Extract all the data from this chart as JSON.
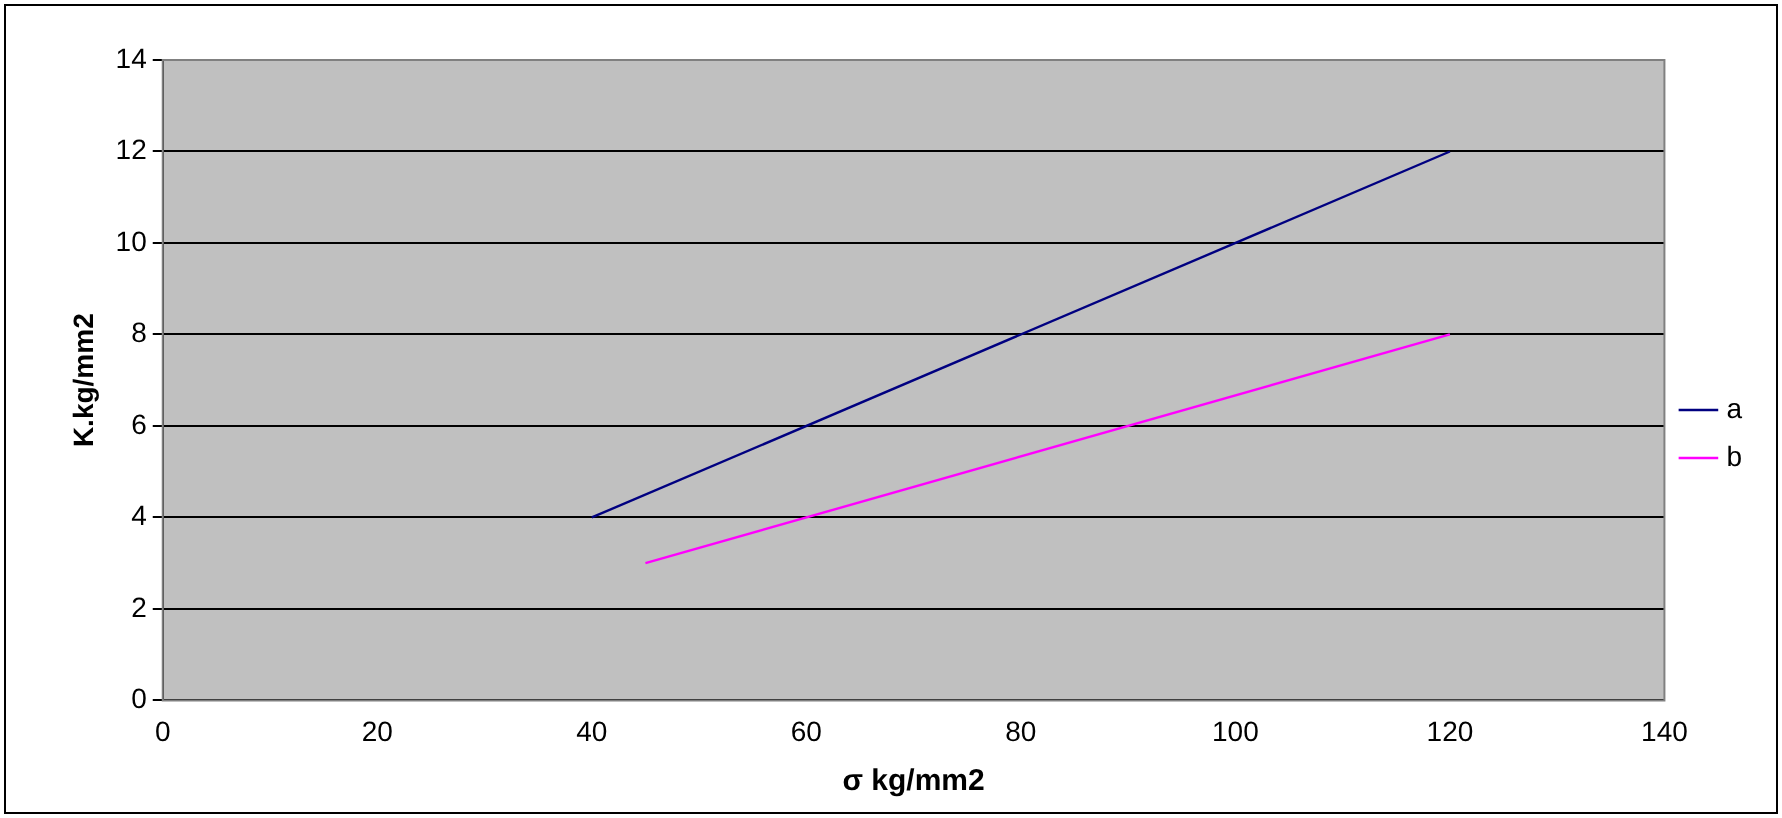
{
  "chart_data": {
    "type": "line",
    "xlabel": "σ kg/mm2",
    "ylabel": "K.kg/mm2",
    "xlim": [
      0,
      140
    ],
    "xticks": [
      0,
      20,
      40,
      60,
      80,
      100,
      120,
      140
    ],
    "ylim": [
      0,
      14
    ],
    "yticks": [
      0,
      2,
      4,
      6,
      8,
      10,
      12,
      14
    ],
    "grid": "y",
    "legend": "right",
    "marker": "none",
    "line_style": "solid",
    "series": [
      {
        "name": "a",
        "color": "#000080",
        "x": [
          40,
          120
        ],
        "values": [
          4,
          12
        ]
      },
      {
        "name": "b",
        "color": "#ff00ff",
        "x": [
          45,
          120
        ],
        "values": [
          3,
          8
        ]
      }
    ]
  }
}
